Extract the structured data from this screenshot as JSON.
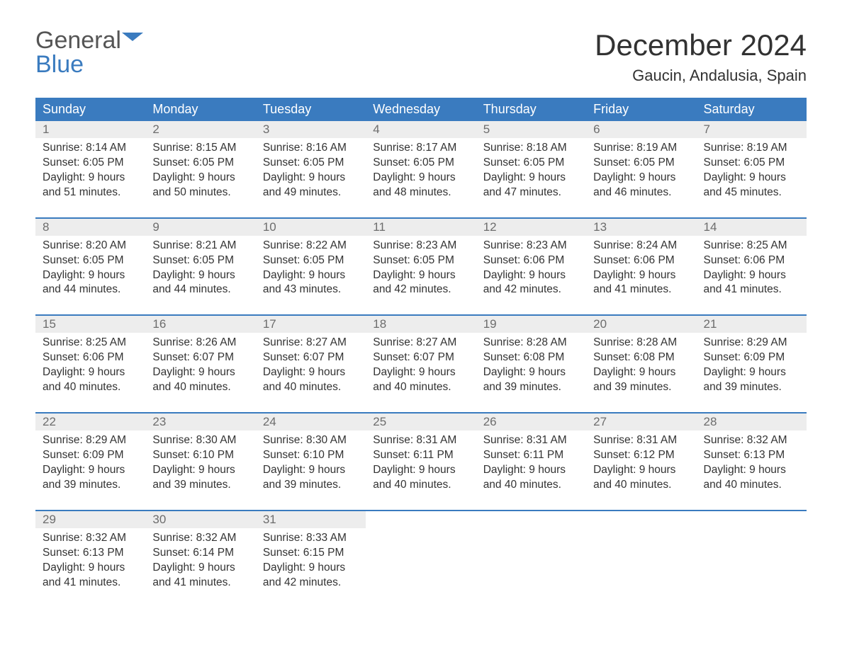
{
  "brand": {
    "part1": "General",
    "part2": "Blue"
  },
  "title": "December 2024",
  "location": "Gaucin, Andalusia, Spain",
  "theme": {
    "header_bg": "#3a7bbf",
    "header_fg": "#ffffff",
    "daynum_bg": "#ededed",
    "daynum_fg": "#6d6d6d",
    "text": "#333333",
    "rule": "#3a7bbf",
    "logo_gray": "#555555",
    "logo_blue": "#3a7bbf"
  },
  "day_headers": [
    "Sunday",
    "Monday",
    "Tuesday",
    "Wednesday",
    "Thursday",
    "Friday",
    "Saturday"
  ],
  "weeks": [
    [
      {
        "n": "1",
        "sr": "8:14 AM",
        "ss": "6:05 PM",
        "dl": "9 hours and 51 minutes."
      },
      {
        "n": "2",
        "sr": "8:15 AM",
        "ss": "6:05 PM",
        "dl": "9 hours and 50 minutes."
      },
      {
        "n": "3",
        "sr": "8:16 AM",
        "ss": "6:05 PM",
        "dl": "9 hours and 49 minutes."
      },
      {
        "n": "4",
        "sr": "8:17 AM",
        "ss": "6:05 PM",
        "dl": "9 hours and 48 minutes."
      },
      {
        "n": "5",
        "sr": "8:18 AM",
        "ss": "6:05 PM",
        "dl": "9 hours and 47 minutes."
      },
      {
        "n": "6",
        "sr": "8:19 AM",
        "ss": "6:05 PM",
        "dl": "9 hours and 46 minutes."
      },
      {
        "n": "7",
        "sr": "8:19 AM",
        "ss": "6:05 PM",
        "dl": "9 hours and 45 minutes."
      }
    ],
    [
      {
        "n": "8",
        "sr": "8:20 AM",
        "ss": "6:05 PM",
        "dl": "9 hours and 44 minutes."
      },
      {
        "n": "9",
        "sr": "8:21 AM",
        "ss": "6:05 PM",
        "dl": "9 hours and 44 minutes."
      },
      {
        "n": "10",
        "sr": "8:22 AM",
        "ss": "6:05 PM",
        "dl": "9 hours and 43 minutes."
      },
      {
        "n": "11",
        "sr": "8:23 AM",
        "ss": "6:05 PM",
        "dl": "9 hours and 42 minutes."
      },
      {
        "n": "12",
        "sr": "8:23 AM",
        "ss": "6:06 PM",
        "dl": "9 hours and 42 minutes."
      },
      {
        "n": "13",
        "sr": "8:24 AM",
        "ss": "6:06 PM",
        "dl": "9 hours and 41 minutes."
      },
      {
        "n": "14",
        "sr": "8:25 AM",
        "ss": "6:06 PM",
        "dl": "9 hours and 41 minutes."
      }
    ],
    [
      {
        "n": "15",
        "sr": "8:25 AM",
        "ss": "6:06 PM",
        "dl": "9 hours and 40 minutes."
      },
      {
        "n": "16",
        "sr": "8:26 AM",
        "ss": "6:07 PM",
        "dl": "9 hours and 40 minutes."
      },
      {
        "n": "17",
        "sr": "8:27 AM",
        "ss": "6:07 PM",
        "dl": "9 hours and 40 minutes."
      },
      {
        "n": "18",
        "sr": "8:27 AM",
        "ss": "6:07 PM",
        "dl": "9 hours and 40 minutes."
      },
      {
        "n": "19",
        "sr": "8:28 AM",
        "ss": "6:08 PM",
        "dl": "9 hours and 39 minutes."
      },
      {
        "n": "20",
        "sr": "8:28 AM",
        "ss": "6:08 PM",
        "dl": "9 hours and 39 minutes."
      },
      {
        "n": "21",
        "sr": "8:29 AM",
        "ss": "6:09 PM",
        "dl": "9 hours and 39 minutes."
      }
    ],
    [
      {
        "n": "22",
        "sr": "8:29 AM",
        "ss": "6:09 PM",
        "dl": "9 hours and 39 minutes."
      },
      {
        "n": "23",
        "sr": "8:30 AM",
        "ss": "6:10 PM",
        "dl": "9 hours and 39 minutes."
      },
      {
        "n": "24",
        "sr": "8:30 AM",
        "ss": "6:10 PM",
        "dl": "9 hours and 39 minutes."
      },
      {
        "n": "25",
        "sr": "8:31 AM",
        "ss": "6:11 PM",
        "dl": "9 hours and 40 minutes."
      },
      {
        "n": "26",
        "sr": "8:31 AM",
        "ss": "6:11 PM",
        "dl": "9 hours and 40 minutes."
      },
      {
        "n": "27",
        "sr": "8:31 AM",
        "ss": "6:12 PM",
        "dl": "9 hours and 40 minutes."
      },
      {
        "n": "28",
        "sr": "8:32 AM",
        "ss": "6:13 PM",
        "dl": "9 hours and 40 minutes."
      }
    ],
    [
      {
        "n": "29",
        "sr": "8:32 AM",
        "ss": "6:13 PM",
        "dl": "9 hours and 41 minutes."
      },
      {
        "n": "30",
        "sr": "8:32 AM",
        "ss": "6:14 PM",
        "dl": "9 hours and 41 minutes."
      },
      {
        "n": "31",
        "sr": "8:33 AM",
        "ss": "6:15 PM",
        "dl": "9 hours and 42 minutes."
      },
      null,
      null,
      null,
      null
    ]
  ],
  "labels": {
    "sunrise": "Sunrise:",
    "sunset": "Sunset:",
    "daylight": "Daylight:"
  }
}
